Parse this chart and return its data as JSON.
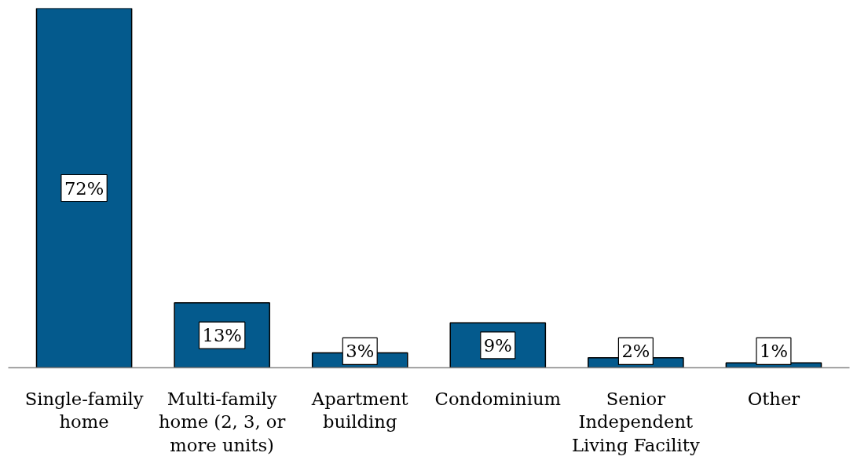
{
  "chart_data": {
    "type": "bar",
    "categories": [
      "Single-family home",
      "Multi-family home (2, 3, or more units)",
      "Apartment building",
      "Condominium",
      "Senior Independent Living Facility",
      "Other"
    ],
    "values": [
      72,
      13,
      3,
      9,
      2,
      1
    ],
    "value_labels": [
      "72%",
      "13%",
      "3%",
      "9%",
      "2%",
      "1%"
    ],
    "color": "#045a8d",
    "ylim": [
      0,
      72
    ],
    "tick_labels": "x",
    "grid": false
  }
}
